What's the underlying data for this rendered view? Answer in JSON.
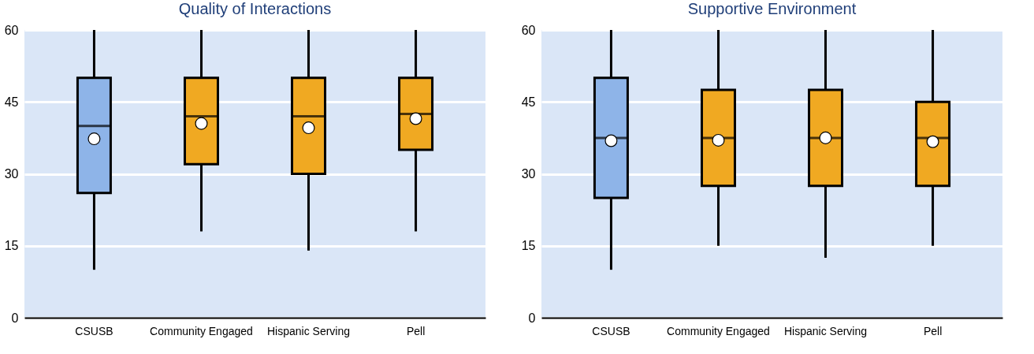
{
  "chart_data": [
    {
      "type": "box",
      "title": "Quality of Interactions",
      "categories": [
        "CSUSB",
        "Community Engaged",
        "Hispanic Serving",
        "Pell"
      ],
      "colors": [
        "#8eb4e8",
        "#f0a922",
        "#f0a922",
        "#f0a922"
      ],
      "boxes": [
        {
          "low": 10,
          "q1": 26,
          "median": 40,
          "q3": 50,
          "high": 60,
          "mean": 37.3
        },
        {
          "low": 18,
          "q1": 32,
          "median": 42,
          "q3": 50,
          "high": 60,
          "mean": 40.5
        },
        {
          "low": 14,
          "q1": 30,
          "median": 42,
          "q3": 50,
          "high": 60,
          "mean": 39.6
        },
        {
          "low": 18,
          "q1": 35,
          "median": 42.5,
          "q3": 50,
          "high": 60,
          "mean": 41.5
        }
      ],
      "ylim": [
        0,
        60
      ],
      "yticks": [
        0,
        15,
        30,
        45,
        60
      ],
      "grid": "y"
    },
    {
      "type": "box",
      "title": "Supportive Environment",
      "categories": [
        "CSUSB",
        "Community Engaged",
        "Hispanic Serving",
        "Pell"
      ],
      "colors": [
        "#8eb4e8",
        "#f0a922",
        "#f0a922",
        "#f0a922"
      ],
      "boxes": [
        {
          "low": 10,
          "q1": 25,
          "median": 37.5,
          "q3": 50,
          "high": 60,
          "mean": 36.9
        },
        {
          "low": 15,
          "q1": 27.5,
          "median": 37.5,
          "q3": 47.5,
          "high": 60,
          "mean": 37
        },
        {
          "low": 12.5,
          "q1": 27.5,
          "median": 37.5,
          "q3": 47.5,
          "high": 60,
          "mean": 37.5
        },
        {
          "low": 15,
          "q1": 27.5,
          "median": 37.5,
          "q3": 45,
          "high": 60,
          "mean": 36.7
        }
      ],
      "ylim": [
        0,
        60
      ],
      "yticks": [
        0,
        15,
        30,
        45,
        60
      ],
      "grid": "y"
    }
  ]
}
